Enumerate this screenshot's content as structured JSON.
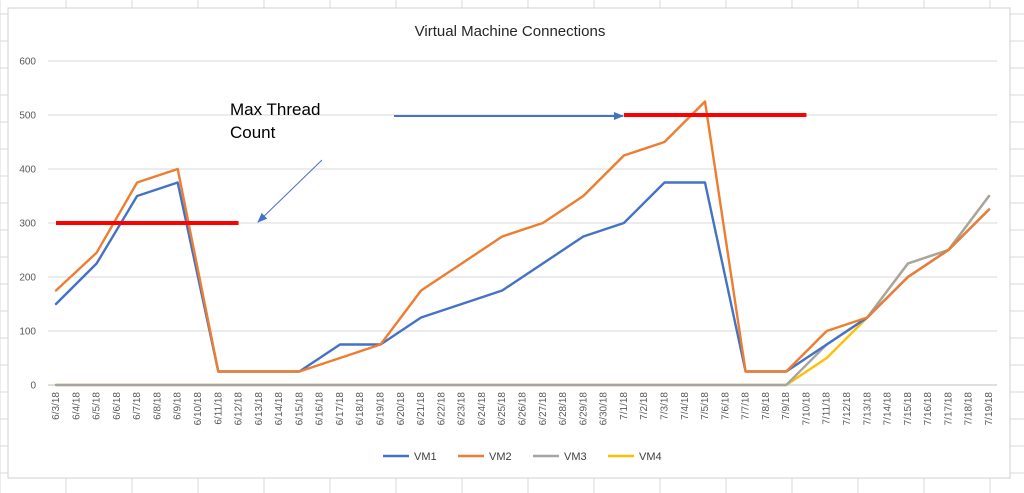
{
  "chart_data": {
    "type": "line",
    "title": "Virtual Machine Connections",
    "xlabel": "",
    "ylabel": "",
    "ylim": [
      0,
      600
    ],
    "yticks": [
      0,
      100,
      200,
      300,
      400,
      500,
      600
    ],
    "grid": true,
    "legend_position": "bottom",
    "categories": [
      "6/3/18",
      "6/4/18",
      "6/5/18",
      "6/6/18",
      "6/7/18",
      "6/8/18",
      "6/9/18",
      "6/10/18",
      "6/11/18",
      "6/12/18",
      "6/13/18",
      "6/14/18",
      "6/15/18",
      "6/16/18",
      "6/17/18",
      "6/18/18",
      "6/19/18",
      "6/20/18",
      "6/21/18",
      "6/22/18",
      "6/23/18",
      "6/24/18",
      "6/25/18",
      "6/26/18",
      "6/27/18",
      "6/28/18",
      "6/29/18",
      "6/30/18",
      "7/1/18",
      "7/2/18",
      "7/3/18",
      "7/4/18",
      "7/5/18",
      "7/6/18",
      "7/7/18",
      "7/8/18",
      "7/9/18",
      "7/10/18",
      "7/11/18",
      "7/12/18",
      "7/13/18",
      "7/14/18",
      "7/15/18",
      "7/16/18",
      "7/17/18",
      "7/18/18",
      "7/19/18"
    ],
    "series": [
      {
        "name": "VM1",
        "color": "#4472c4",
        "points": [
          [
            "6/3/18",
            150
          ],
          [
            "6/5/18",
            225
          ],
          [
            "6/7/18",
            350
          ],
          [
            "6/9/18",
            375
          ],
          [
            "6/11/18",
            25
          ],
          [
            "6/15/18",
            25
          ],
          [
            "6/17/18",
            75
          ],
          [
            "6/19/18",
            75
          ],
          [
            "6/21/18",
            125
          ],
          [
            "6/23/18",
            150
          ],
          [
            "6/25/18",
            175
          ],
          [
            "6/27/18",
            225
          ],
          [
            "6/29/18",
            275
          ],
          [
            "7/1/18",
            300
          ],
          [
            "7/3/18",
            375
          ],
          [
            "7/5/18",
            375
          ],
          [
            "7/7/18",
            25
          ],
          [
            "7/9/18",
            25
          ],
          [
            "7/11/18",
            75
          ],
          [
            "7/13/18",
            125
          ],
          [
            "7/15/18",
            200
          ],
          [
            "7/17/18",
            250
          ],
          [
            "7/19/18",
            325
          ]
        ]
      },
      {
        "name": "VM2",
        "color": "#ed7d31",
        "points": [
          [
            "6/3/18",
            175
          ],
          [
            "6/5/18",
            245
          ],
          [
            "6/7/18",
            375
          ],
          [
            "6/9/18",
            400
          ],
          [
            "6/11/18",
            25
          ],
          [
            "6/15/18",
            25
          ],
          [
            "6/17/18",
            50
          ],
          [
            "6/19/18",
            75
          ],
          [
            "6/21/18",
            175
          ],
          [
            "6/23/18",
            225
          ],
          [
            "6/25/18",
            275
          ],
          [
            "6/27/18",
            300
          ],
          [
            "6/29/18",
            350
          ],
          [
            "7/1/18",
            425
          ],
          [
            "7/3/18",
            450
          ],
          [
            "7/5/18",
            525
          ],
          [
            "7/7/18",
            25
          ],
          [
            "7/9/18",
            25
          ],
          [
            "7/11/18",
            100
          ],
          [
            "7/13/18",
            125
          ],
          [
            "7/15/18",
            200
          ],
          [
            "7/17/18",
            250
          ],
          [
            "7/19/18",
            325
          ]
        ]
      },
      {
        "name": "VM3",
        "color": "#a5a5a5",
        "points": [
          [
            "6/3/18",
            0
          ],
          [
            "7/9/18",
            0
          ],
          [
            "7/11/18",
            75
          ],
          [
            "7/13/18",
            125
          ],
          [
            "7/15/18",
            225
          ],
          [
            "7/17/18",
            250
          ],
          [
            "7/19/18",
            350
          ]
        ]
      },
      {
        "name": "VM4",
        "color": "#ffc000",
        "points": [
          [
            "6/3/18",
            0
          ],
          [
            "7/9/18",
            0
          ],
          [
            "7/11/18",
            50
          ],
          [
            "7/13/18",
            125
          ],
          [
            "7/15/18",
            225
          ],
          [
            "7/17/18",
            250
          ],
          [
            "7/19/18",
            350
          ]
        ]
      }
    ],
    "annotations": {
      "label_line1": "Max Thread",
      "label_line2": "Count",
      "threshold_color": "#ff0000",
      "arrow_color": "#4472c4",
      "thresholds": [
        {
          "x_from": "6/3/18",
          "x_to": "6/12/18",
          "y": 300
        },
        {
          "x_from": "7/1/18",
          "x_to": "7/10/18",
          "y": 500
        }
      ]
    }
  }
}
